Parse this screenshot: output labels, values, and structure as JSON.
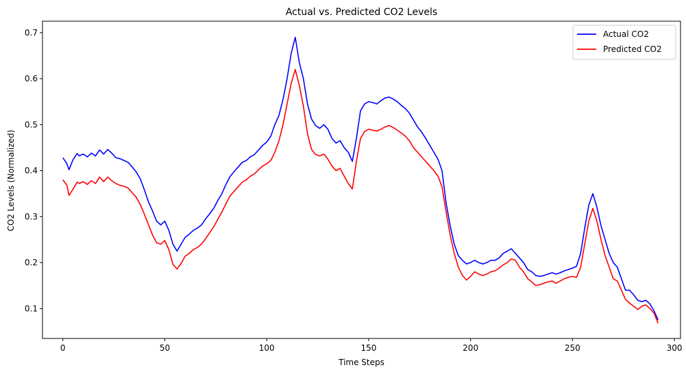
{
  "chart_data": {
    "type": "line",
    "title": "Actual vs. Predicted CO2 Levels",
    "xlabel": "Time Steps",
    "ylabel": "CO2 Levels (Normalized)",
    "xlim": [
      -10,
      303
    ],
    "ylim": [
      0.035,
      0.725
    ],
    "xticks": [
      0,
      50,
      100,
      150,
      200,
      250,
      300
    ],
    "yticks": [
      0.1,
      0.2,
      0.3,
      0.4,
      0.5,
      0.6,
      0.7
    ],
    "grid": false,
    "legend_position": "top-right",
    "series": [
      {
        "name": "Actual CO2",
        "color": "#0000ff",
        "anchors": [
          [
            0,
            0.428
          ],
          [
            2,
            0.415
          ],
          [
            3,
            0.402
          ],
          [
            5,
            0.424
          ],
          [
            7,
            0.437
          ],
          [
            8,
            0.432
          ],
          [
            10,
            0.436
          ],
          [
            12,
            0.43
          ],
          [
            14,
            0.438
          ],
          [
            16,
            0.432
          ],
          [
            18,
            0.445
          ],
          [
            20,
            0.436
          ],
          [
            22,
            0.446
          ],
          [
            24,
            0.438
          ],
          [
            26,
            0.428
          ],
          [
            28,
            0.426
          ],
          [
            30,
            0.422
          ],
          [
            32,
            0.418
          ],
          [
            34,
            0.408
          ],
          [
            36,
            0.397
          ],
          [
            38,
            0.382
          ],
          [
            40,
            0.358
          ],
          [
            42,
            0.332
          ],
          [
            44,
            0.312
          ],
          [
            46,
            0.29
          ],
          [
            48,
            0.282
          ],
          [
            50,
            0.29
          ],
          [
            52,
            0.27
          ],
          [
            54,
            0.24
          ],
          [
            56,
            0.225
          ],
          [
            58,
            0.24
          ],
          [
            60,
            0.255
          ],
          [
            62,
            0.262
          ],
          [
            64,
            0.27
          ],
          [
            66,
            0.275
          ],
          [
            68,
            0.282
          ],
          [
            70,
            0.295
          ],
          [
            72,
            0.306
          ],
          [
            74,
            0.318
          ],
          [
            76,
            0.335
          ],
          [
            78,
            0.35
          ],
          [
            80,
            0.37
          ],
          [
            82,
            0.387
          ],
          [
            84,
            0.398
          ],
          [
            86,
            0.408
          ],
          [
            88,
            0.418
          ],
          [
            90,
            0.422
          ],
          [
            92,
            0.43
          ],
          [
            94,
            0.435
          ],
          [
            96,
            0.445
          ],
          [
            98,
            0.455
          ],
          [
            100,
            0.462
          ],
          [
            102,
            0.475
          ],
          [
            104,
            0.5
          ],
          [
            106,
            0.52
          ],
          [
            108,
            0.555
          ],
          [
            110,
            0.6
          ],
          [
            112,
            0.655
          ],
          [
            114,
            0.69
          ],
          [
            116,
            0.635
          ],
          [
            118,
            0.6
          ],
          [
            120,
            0.545
          ],
          [
            122,
            0.512
          ],
          [
            124,
            0.498
          ],
          [
            126,
            0.492
          ],
          [
            128,
            0.5
          ],
          [
            130,
            0.49
          ],
          [
            132,
            0.47
          ],
          [
            134,
            0.46
          ],
          [
            136,
            0.465
          ],
          [
            138,
            0.45
          ],
          [
            140,
            0.44
          ],
          [
            142,
            0.42
          ],
          [
            144,
            0.47
          ],
          [
            146,
            0.53
          ],
          [
            148,
            0.545
          ],
          [
            150,
            0.55
          ],
          [
            152,
            0.548
          ],
          [
            154,
            0.545
          ],
          [
            156,
            0.552
          ],
          [
            158,
            0.558
          ],
          [
            160,
            0.56
          ],
          [
            162,
            0.556
          ],
          [
            164,
            0.55
          ],
          [
            166,
            0.542
          ],
          [
            168,
            0.535
          ],
          [
            170,
            0.525
          ],
          [
            172,
            0.51
          ],
          [
            174,
            0.495
          ],
          [
            176,
            0.484
          ],
          [
            178,
            0.47
          ],
          [
            180,
            0.455
          ],
          [
            182,
            0.44
          ],
          [
            184,
            0.425
          ],
          [
            186,
            0.4
          ],
          [
            188,
            0.33
          ],
          [
            190,
            0.28
          ],
          [
            192,
            0.24
          ],
          [
            194,
            0.215
          ],
          [
            196,
            0.205
          ],
          [
            198,
            0.197
          ],
          [
            200,
            0.2
          ],
          [
            202,
            0.205
          ],
          [
            204,
            0.2
          ],
          [
            206,
            0.197
          ],
          [
            208,
            0.2
          ],
          [
            210,
            0.205
          ],
          [
            212,
            0.205
          ],
          [
            214,
            0.21
          ],
          [
            216,
            0.22
          ],
          [
            218,
            0.225
          ],
          [
            220,
            0.23
          ],
          [
            222,
            0.22
          ],
          [
            224,
            0.21
          ],
          [
            226,
            0.2
          ],
          [
            228,
            0.185
          ],
          [
            230,
            0.18
          ],
          [
            232,
            0.172
          ],
          [
            234,
            0.17
          ],
          [
            236,
            0.172
          ],
          [
            238,
            0.175
          ],
          [
            240,
            0.178
          ],
          [
            242,
            0.175
          ],
          [
            244,
            0.178
          ],
          [
            246,
            0.182
          ],
          [
            248,
            0.185
          ],
          [
            250,
            0.188
          ],
          [
            252,
            0.192
          ],
          [
            254,
            0.22
          ],
          [
            256,
            0.275
          ],
          [
            258,
            0.325
          ],
          [
            260,
            0.35
          ],
          [
            262,
            0.32
          ],
          [
            264,
            0.28
          ],
          [
            266,
            0.25
          ],
          [
            268,
            0.22
          ],
          [
            270,
            0.2
          ],
          [
            272,
            0.19
          ],
          [
            274,
            0.165
          ],
          [
            276,
            0.14
          ],
          [
            278,
            0.14
          ],
          [
            280,
            0.13
          ],
          [
            282,
            0.118
          ],
          [
            284,
            0.115
          ],
          [
            286,
            0.118
          ],
          [
            288,
            0.11
          ],
          [
            290,
            0.095
          ],
          [
            292,
            0.075
          ]
        ]
      },
      {
        "name": "Predicted CO2",
        "color": "#ff0000",
        "anchors": [
          [
            0,
            0.38
          ],
          [
            2,
            0.368
          ],
          [
            3,
            0.346
          ],
          [
            5,
            0.36
          ],
          [
            7,
            0.375
          ],
          [
            8,
            0.372
          ],
          [
            10,
            0.376
          ],
          [
            12,
            0.37
          ],
          [
            14,
            0.378
          ],
          [
            16,
            0.372
          ],
          [
            18,
            0.386
          ],
          [
            20,
            0.376
          ],
          [
            22,
            0.386
          ],
          [
            24,
            0.378
          ],
          [
            26,
            0.372
          ],
          [
            28,
            0.368
          ],
          [
            30,
            0.366
          ],
          [
            32,
            0.362
          ],
          [
            34,
            0.352
          ],
          [
            36,
            0.342
          ],
          [
            38,
            0.326
          ],
          [
            40,
            0.305
          ],
          [
            42,
            0.282
          ],
          [
            44,
            0.26
          ],
          [
            46,
            0.243
          ],
          [
            48,
            0.24
          ],
          [
            50,
            0.248
          ],
          [
            52,
            0.228
          ],
          [
            54,
            0.196
          ],
          [
            56,
            0.186
          ],
          [
            58,
            0.198
          ],
          [
            60,
            0.214
          ],
          [
            62,
            0.22
          ],
          [
            64,
            0.228
          ],
          [
            66,
            0.233
          ],
          [
            68,
            0.24
          ],
          [
            70,
            0.252
          ],
          [
            72,
            0.265
          ],
          [
            74,
            0.278
          ],
          [
            76,
            0.294
          ],
          [
            78,
            0.31
          ],
          [
            80,
            0.328
          ],
          [
            82,
            0.345
          ],
          [
            84,
            0.355
          ],
          [
            86,
            0.365
          ],
          [
            88,
            0.375
          ],
          [
            90,
            0.38
          ],
          [
            92,
            0.388
          ],
          [
            94,
            0.393
          ],
          [
            96,
            0.402
          ],
          [
            98,
            0.41
          ],
          [
            100,
            0.415
          ],
          [
            102,
            0.422
          ],
          [
            104,
            0.44
          ],
          [
            106,
            0.465
          ],
          [
            108,
            0.5
          ],
          [
            110,
            0.545
          ],
          [
            112,
            0.59
          ],
          [
            114,
            0.62
          ],
          [
            116,
            0.585
          ],
          [
            118,
            0.54
          ],
          [
            120,
            0.48
          ],
          [
            122,
            0.446
          ],
          [
            124,
            0.435
          ],
          [
            126,
            0.432
          ],
          [
            128,
            0.436
          ],
          [
            130,
            0.425
          ],
          [
            132,
            0.41
          ],
          [
            134,
            0.4
          ],
          [
            136,
            0.405
          ],
          [
            138,
            0.388
          ],
          [
            140,
            0.372
          ],
          [
            142,
            0.36
          ],
          [
            144,
            0.42
          ],
          [
            146,
            0.47
          ],
          [
            148,
            0.485
          ],
          [
            150,
            0.49
          ],
          [
            152,
            0.488
          ],
          [
            154,
            0.486
          ],
          [
            156,
            0.49
          ],
          [
            158,
            0.495
          ],
          [
            160,
            0.498
          ],
          [
            162,
            0.494
          ],
          [
            164,
            0.488
          ],
          [
            166,
            0.482
          ],
          [
            168,
            0.475
          ],
          [
            170,
            0.465
          ],
          [
            172,
            0.45
          ],
          [
            174,
            0.44
          ],
          [
            176,
            0.43
          ],
          [
            178,
            0.42
          ],
          [
            180,
            0.41
          ],
          [
            182,
            0.4
          ],
          [
            184,
            0.388
          ],
          [
            186,
            0.365
          ],
          [
            188,
            0.31
          ],
          [
            190,
            0.26
          ],
          [
            192,
            0.22
          ],
          [
            194,
            0.19
          ],
          [
            196,
            0.172
          ],
          [
            198,
            0.162
          ],
          [
            200,
            0.17
          ],
          [
            202,
            0.18
          ],
          [
            204,
            0.175
          ],
          [
            206,
            0.172
          ],
          [
            208,
            0.175
          ],
          [
            210,
            0.18
          ],
          [
            212,
            0.182
          ],
          [
            214,
            0.188
          ],
          [
            216,
            0.195
          ],
          [
            218,
            0.2
          ],
          [
            220,
            0.208
          ],
          [
            222,
            0.205
          ],
          [
            224,
            0.19
          ],
          [
            226,
            0.18
          ],
          [
            228,
            0.165
          ],
          [
            230,
            0.158
          ],
          [
            232,
            0.15
          ],
          [
            234,
            0.152
          ],
          [
            236,
            0.155
          ],
          [
            238,
            0.158
          ],
          [
            240,
            0.16
          ],
          [
            242,
            0.155
          ],
          [
            244,
            0.16
          ],
          [
            246,
            0.165
          ],
          [
            248,
            0.168
          ],
          [
            250,
            0.17
          ],
          [
            252,
            0.168
          ],
          [
            254,
            0.19
          ],
          [
            256,
            0.24
          ],
          [
            258,
            0.29
          ],
          [
            260,
            0.318
          ],
          [
            262,
            0.29
          ],
          [
            264,
            0.25
          ],
          [
            266,
            0.215
          ],
          [
            268,
            0.19
          ],
          [
            270,
            0.165
          ],
          [
            272,
            0.16
          ],
          [
            274,
            0.14
          ],
          [
            276,
            0.12
          ],
          [
            278,
            0.112
          ],
          [
            280,
            0.105
          ],
          [
            282,
            0.098
          ],
          [
            284,
            0.105
          ],
          [
            286,
            0.108
          ],
          [
            288,
            0.1
          ],
          [
            290,
            0.09
          ],
          [
            292,
            0.068
          ]
        ]
      }
    ]
  }
}
